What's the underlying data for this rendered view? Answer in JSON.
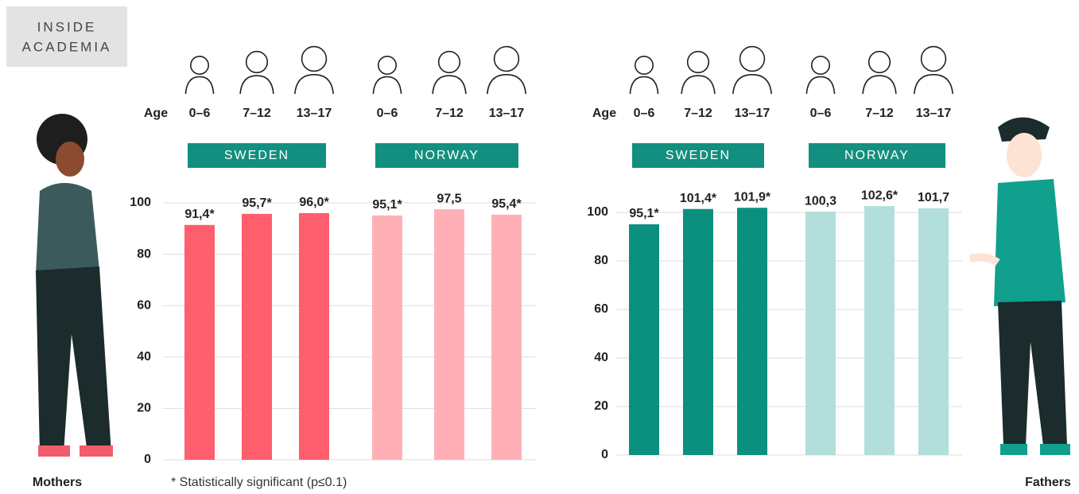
{
  "brand": [
    "INSIDE",
    "ACADEMIA"
  ],
  "footnote": "* Statistically significant (p≤0.1)",
  "chart_data": [
    {
      "type": "bar",
      "caption": "Mothers",
      "xlabel": "Age",
      "categories": [
        "0–6",
        "7–12",
        "13–17"
      ],
      "series": [
        {
          "name": "SWEDEN",
          "color": "#ff5e6c",
          "values": [
            91.4,
            95.7,
            96.0
          ],
          "value_labels": [
            "91,4*",
            "95,7*",
            "96,0*"
          ]
        },
        {
          "name": "NORWAY",
          "color": "#ffb0b7",
          "values": [
            95.1,
            97.5,
            95.4
          ],
          "value_labels": [
            "95,1*",
            "97,5",
            "95,4*"
          ]
        }
      ],
      "ylim": [
        0,
        100
      ],
      "yticks": [
        0,
        20,
        40,
        60,
        80,
        100
      ],
      "grid": true
    },
    {
      "type": "bar",
      "caption": "Fathers",
      "xlabel": "Age",
      "categories": [
        "0–6",
        "7–12",
        "13–17"
      ],
      "series": [
        {
          "name": "SWEDEN",
          "color": "#0b9080",
          "values": [
            95.1,
            101.4,
            101.9
          ],
          "value_labels": [
            "95,1*",
            "101,4*",
            "101,9*"
          ]
        },
        {
          "name": "NORWAY",
          "color": "#b2dfdb",
          "values": [
            100.3,
            102.6,
            101.7
          ],
          "value_labels": [
            "100,3",
            "102,6*",
            "101,7"
          ]
        }
      ],
      "ylim": [
        0,
        100
      ],
      "yticks": [
        0,
        20,
        40,
        60,
        80,
        100
      ],
      "grid": true
    }
  ]
}
